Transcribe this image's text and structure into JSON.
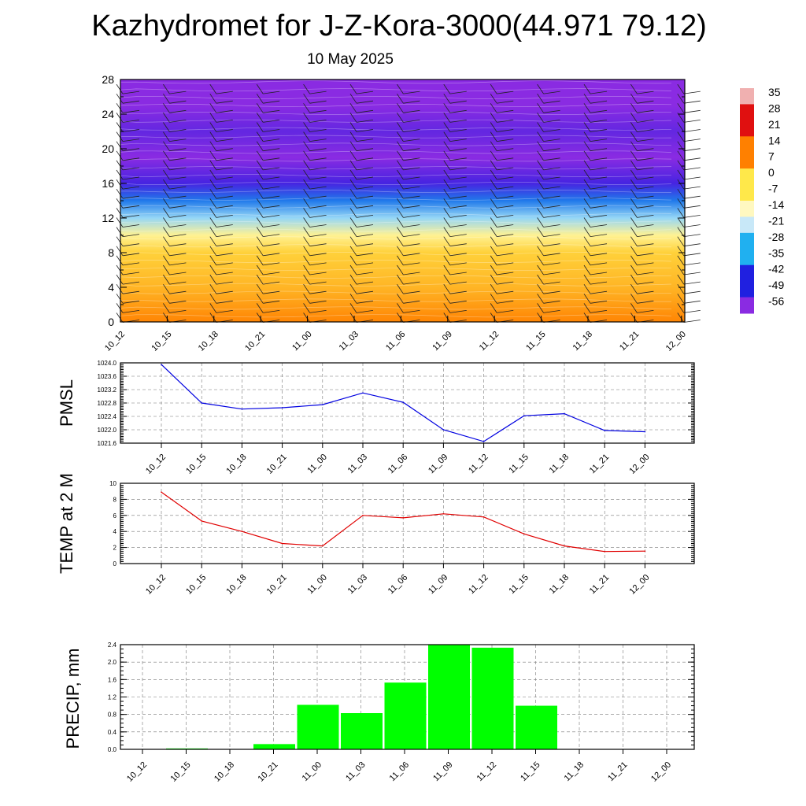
{
  "header": {
    "title": "Kazhydromet for J-Z-Kora-3000(44.971 79.12)",
    "subtitle": "10 May 2025"
  },
  "time_labels": [
    "10_12",
    "10_15",
    "10_18",
    "10_21",
    "11_00",
    "11_03",
    "11_06",
    "11_09",
    "11_12",
    "11_15",
    "11_18",
    "11_21",
    "12_00"
  ],
  "colorbar": {
    "labels": [
      "35",
      "28",
      "21",
      "14",
      "7",
      "0",
      "-7",
      "-14",
      "-21",
      "-28",
      "-35",
      "-42",
      "-49",
      "-56"
    ],
    "colors": {
      "top": "#f0b0b0",
      "red": "#e01010",
      "orange": "#ff8000",
      "yellow": "#ffe84a",
      "pale_yellow": "#fff8c0",
      "pale_blue": "#c8e8f8",
      "cyan": "#20b0f0",
      "blue": "#2020e0",
      "violet": "#8a2be2"
    }
  },
  "chart_data": [
    {
      "type": "heatmap",
      "title": "",
      "xlabel": "",
      "ylabel": "",
      "x": [
        "10_12",
        "10_15",
        "10_18",
        "10_21",
        "11_00",
        "11_03",
        "11_06",
        "11_09",
        "11_12",
        "11_15",
        "11_18",
        "11_21",
        "12_00"
      ],
      "ylim": [
        0,
        28
      ],
      "yticks": [
        "0",
        "4",
        "8",
        "12",
        "16",
        "20",
        "24",
        "28"
      ],
      "grid": false,
      "legend": "colorbar right",
      "colorbar_range": [
        -56,
        35
      ],
      "temperature_profile": [
        {
          "height": 0,
          "value": 9
        },
        {
          "height": 4,
          "value": 4
        },
        {
          "height": 8,
          "value": 1
        },
        {
          "height": 10,
          "value": -7
        },
        {
          "height": 12,
          "value": -21
        },
        {
          "height": 14,
          "value": -35
        },
        {
          "height": 16,
          "value": -49
        },
        {
          "height": 19,
          "value": -56
        },
        {
          "height": 22,
          "value": -52
        },
        {
          "height": 25,
          "value": -58
        },
        {
          "height": 28,
          "value": -58
        }
      ],
      "overlay": "wind barbs"
    },
    {
      "type": "line",
      "title": "",
      "xlabel": "",
      "ylabel": "PMSL",
      "categories": [
        "10_12",
        "10_15",
        "10_18",
        "10_21",
        "11_00",
        "11_03",
        "11_06",
        "11_09",
        "11_12",
        "11_15",
        "11_18",
        "11_21",
        "12_00"
      ],
      "series": [
        {
          "values": [
            1023.95,
            1022.8,
            1022.62,
            1022.66,
            1022.75,
            1023.1,
            1022.82,
            1022.0,
            1021.65,
            1022.42,
            1022.48,
            1021.98,
            1021.94
          ],
          "color": "#0000e0"
        }
      ],
      "ylim": [
        1021.6,
        1024.0
      ],
      "yticks": [
        "1021.6",
        "1022.0",
        "1022.4",
        "1022.8",
        "1023.2",
        "1023.6",
        "1024.0"
      ],
      "grid": true
    },
    {
      "type": "line",
      "title": "",
      "xlabel": "",
      "ylabel": "TEMP at 2 M",
      "categories": [
        "10_12",
        "10_15",
        "10_18",
        "10_21",
        "11_00",
        "11_03",
        "11_06",
        "11_09",
        "11_12",
        "11_15",
        "11_18",
        "11_21",
        "12_00"
      ],
      "series": [
        {
          "values": [
            8.9,
            5.3,
            4.0,
            2.5,
            2.2,
            6.0,
            5.7,
            6.2,
            5.8,
            3.7,
            2.2,
            1.5,
            1.55
          ],
          "color": "#e00000"
        }
      ],
      "ylim": [
        0,
        10
      ],
      "yticks": [
        "0",
        "2",
        "4",
        "6",
        "8",
        "10"
      ],
      "grid": true
    },
    {
      "type": "bar",
      "title": "",
      "xlabel": "",
      "ylabel": "PRECIP, mm",
      "categories": [
        "10_12",
        "10_15",
        "10_18",
        "10_21",
        "11_00",
        "11_03",
        "11_06",
        "11_09",
        "11_12",
        "11_15",
        "11_18",
        "11_21",
        "12_00"
      ],
      "values": [
        0.0,
        0.02,
        0.0,
        0.12,
        1.02,
        0.83,
        1.53,
        2.4,
        2.33,
        1.0,
        0.0,
        0.0,
        0.0
      ],
      "color": "#00ff00",
      "ylim": [
        0,
        2.4
      ],
      "yticks": [
        "0.0",
        "0.4",
        "0.8",
        "1.2",
        "1.6",
        "2.0",
        "2.4"
      ],
      "grid": true
    }
  ]
}
